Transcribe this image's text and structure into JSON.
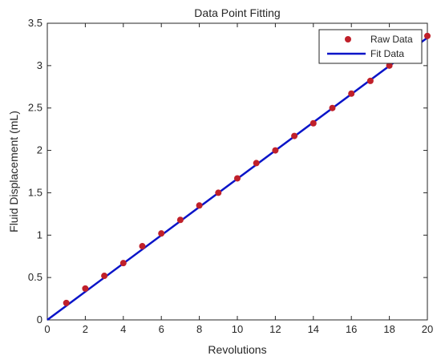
{
  "chart_data": {
    "type": "scatter",
    "title": "Data Point Fitting",
    "xlabel": "Revolutions",
    "ylabel": "Fluid Displacement (mL)",
    "xlim": [
      0,
      20
    ],
    "ylim": [
      0,
      3.5
    ],
    "xticks": [
      0,
      2,
      4,
      6,
      8,
      10,
      12,
      14,
      16,
      18,
      20
    ],
    "yticks": [
      0,
      0.5,
      1,
      1.5,
      2,
      2.5,
      3,
      3.5
    ],
    "grid": false,
    "legend_position": "top-right",
    "series": [
      {
        "name": "Raw Data",
        "kind": "scatter",
        "color": "#c0202a",
        "x": [
          1,
          2,
          3,
          4,
          5,
          6,
          7,
          8,
          9,
          10,
          11,
          12,
          13,
          14,
          15,
          16,
          17,
          18,
          20
        ],
        "y": [
          0.2,
          0.37,
          0.52,
          0.67,
          0.87,
          1.02,
          1.18,
          1.35,
          1.5,
          1.67,
          1.85,
          2.0,
          2.17,
          2.32,
          2.5,
          2.67,
          2.82,
          3.0,
          3.35
        ]
      },
      {
        "name": "Fit Data",
        "kind": "line",
        "color": "#0a14c8",
        "x": [
          0,
          20
        ],
        "y": [
          0,
          3.33
        ]
      }
    ]
  }
}
